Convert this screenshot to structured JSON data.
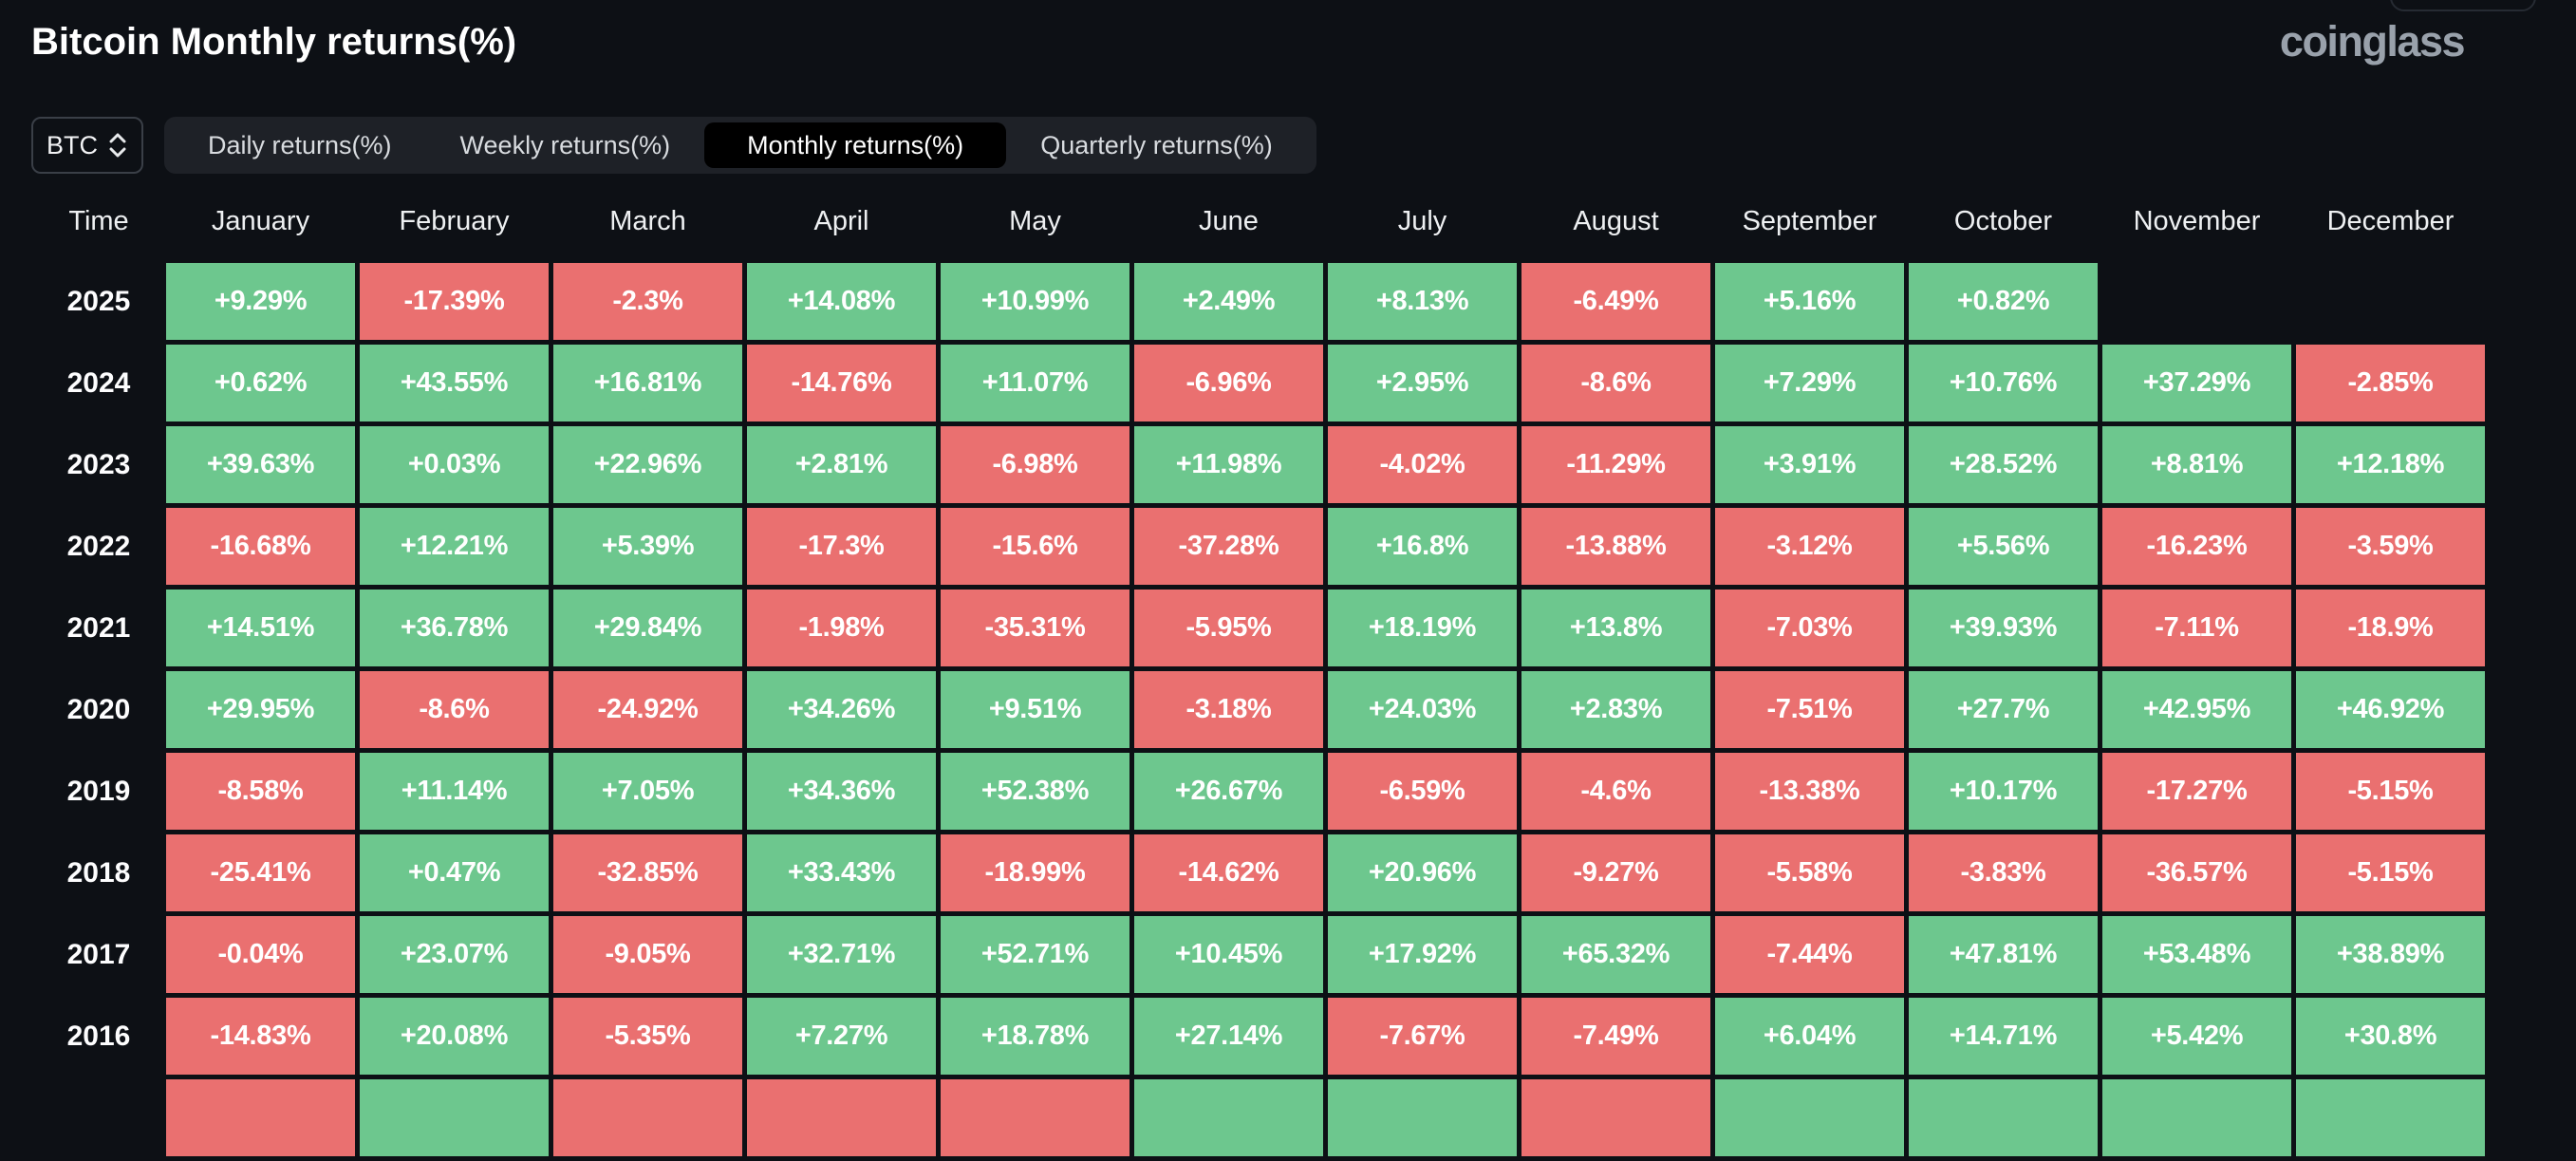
{
  "header": {
    "title": "Bitcoin Monthly returns(%)",
    "brand": "coinglass"
  },
  "controls": {
    "symbol": {
      "value": "BTC",
      "icon": "up-down-chevron"
    },
    "tabs": [
      {
        "label": "Daily returns(%)"
      },
      {
        "label": "Weekly returns(%)"
      },
      {
        "label": "Monthly returns(%)"
      },
      {
        "label": "Quarterly returns(%)"
      }
    ],
    "active_tab_index": 2
  },
  "colors": {
    "page_bg": "#0d1015",
    "positive": "#6dc78e",
    "negative": "#ea7070",
    "tabbar_bg": "#1e2127",
    "active_tab_bg": "#000000"
  },
  "chart_data": {
    "type": "heatmap",
    "title": "Bitcoin Monthly returns(%)",
    "unit": "%",
    "legend_position": "none",
    "columns": [
      "Time",
      "January",
      "February",
      "March",
      "April",
      "May",
      "June",
      "July",
      "August",
      "September",
      "October",
      "November",
      "December"
    ],
    "rows": [
      {
        "year": "2025",
        "values": [
          "+9.29%",
          "-17.39%",
          "-2.3%",
          "+14.08%",
          "+10.99%",
          "+2.49%",
          "+8.13%",
          "-6.49%",
          "+5.16%",
          "+0.82%",
          "",
          ""
        ]
      },
      {
        "year": "2024",
        "values": [
          "+0.62%",
          "+43.55%",
          "+16.81%",
          "-14.76%",
          "+11.07%",
          "-6.96%",
          "+2.95%",
          "-8.6%",
          "+7.29%",
          "+10.76%",
          "+37.29%",
          "-2.85%"
        ]
      },
      {
        "year": "2023",
        "values": [
          "+39.63%",
          "+0.03%",
          "+22.96%",
          "+2.81%",
          "-6.98%",
          "+11.98%",
          "-4.02%",
          "-11.29%",
          "+3.91%",
          "+28.52%",
          "+8.81%",
          "+12.18%"
        ]
      },
      {
        "year": "2022",
        "values": [
          "-16.68%",
          "+12.21%",
          "+5.39%",
          "-17.3%",
          "-15.6%",
          "-37.28%",
          "+16.8%",
          "-13.88%",
          "-3.12%",
          "+5.56%",
          "-16.23%",
          "-3.59%"
        ]
      },
      {
        "year": "2021",
        "values": [
          "+14.51%",
          "+36.78%",
          "+29.84%",
          "-1.98%",
          "-35.31%",
          "-5.95%",
          "+18.19%",
          "+13.8%",
          "-7.03%",
          "+39.93%",
          "-7.11%",
          "-18.9%"
        ]
      },
      {
        "year": "2020",
        "values": [
          "+29.95%",
          "-8.6%",
          "-24.92%",
          "+34.26%",
          "+9.51%",
          "-3.18%",
          "+24.03%",
          "+2.83%",
          "-7.51%",
          "+27.7%",
          "+42.95%",
          "+46.92%"
        ]
      },
      {
        "year": "2019",
        "values": [
          "-8.58%",
          "+11.14%",
          "+7.05%",
          "+34.36%",
          "+52.38%",
          "+26.67%",
          "-6.59%",
          "-4.6%",
          "-13.38%",
          "+10.17%",
          "-17.27%",
          "-5.15%"
        ]
      },
      {
        "year": "2018",
        "values": [
          "-25.41%",
          "+0.47%",
          "-32.85%",
          "+33.43%",
          "-18.99%",
          "-14.62%",
          "+20.96%",
          "-9.27%",
          "-5.58%",
          "-3.83%",
          "-36.57%",
          "-5.15%"
        ]
      },
      {
        "year": "2017",
        "values": [
          "-0.04%",
          "+23.07%",
          "-9.05%",
          "+32.71%",
          "+52.71%",
          "+10.45%",
          "+17.92%",
          "+65.32%",
          "-7.44%",
          "+47.81%",
          "+53.48%",
          "+38.89%"
        ]
      },
      {
        "year": "2016",
        "values": [
          "-14.83%",
          "+20.08%",
          "-5.35%",
          "+7.27%",
          "+18.78%",
          "+27.14%",
          "-7.67%",
          "-7.49%",
          "+6.04%",
          "+14.71%",
          "+5.42%",
          "+30.8%"
        ]
      }
    ],
    "partial_next_row_signs": [
      "neg",
      "pos",
      "neg",
      "neg",
      "neg",
      "pos",
      "pos",
      "neg",
      "pos",
      "pos",
      "pos",
      "pos"
    ]
  }
}
